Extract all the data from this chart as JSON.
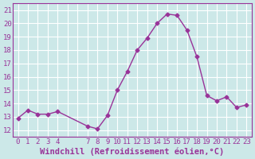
{
  "x": [
    0,
    1,
    2,
    3,
    4,
    7,
    8,
    9,
    10,
    11,
    12,
    13,
    14,
    15,
    16,
    17,
    18,
    19,
    20,
    21,
    22,
    23
  ],
  "y": [
    12.9,
    13.5,
    13.2,
    13.2,
    13.4,
    12.3,
    12.1,
    13.1,
    15.0,
    16.4,
    18.0,
    18.9,
    20.0,
    20.7,
    20.6,
    19.5,
    17.5,
    14.6,
    14.2,
    14.5,
    13.7,
    13.9
  ],
  "line_color": "#993399",
  "marker_color": "#993399",
  "bg_color": "#cce8e8",
  "plot_bg_color": "#cce8e8",
  "grid_color": "#aacccc",
  "xlabel": "Windchill (Refroidissement éolien,°C)",
  "ylim": [
    11.5,
    21.5
  ],
  "xlim": [
    -0.5,
    23.5
  ],
  "yticks": [
    12,
    13,
    14,
    15,
    16,
    17,
    18,
    19,
    20,
    21
  ],
  "xticks": [
    0,
    1,
    2,
    3,
    4,
    5,
    6,
    7,
    8,
    9,
    10,
    11,
    12,
    13,
    14,
    15,
    16,
    17,
    18,
    19,
    20,
    21,
    22,
    23
  ],
  "xtick_labels": [
    "0",
    "1",
    "2",
    "3",
    "4",
    "",
    "",
    "7",
    "8",
    "9",
    "10",
    "11",
    "12",
    "13",
    "14",
    "15",
    "16",
    "17",
    "18",
    "19",
    "20",
    "21",
    "22",
    "23"
  ],
  "xlabel_color": "#993399",
  "tick_color": "#993399",
  "font_size": 6.5,
  "xlabel_fontsize": 7.5,
  "linewidth": 1.0,
  "markersize": 2.5
}
